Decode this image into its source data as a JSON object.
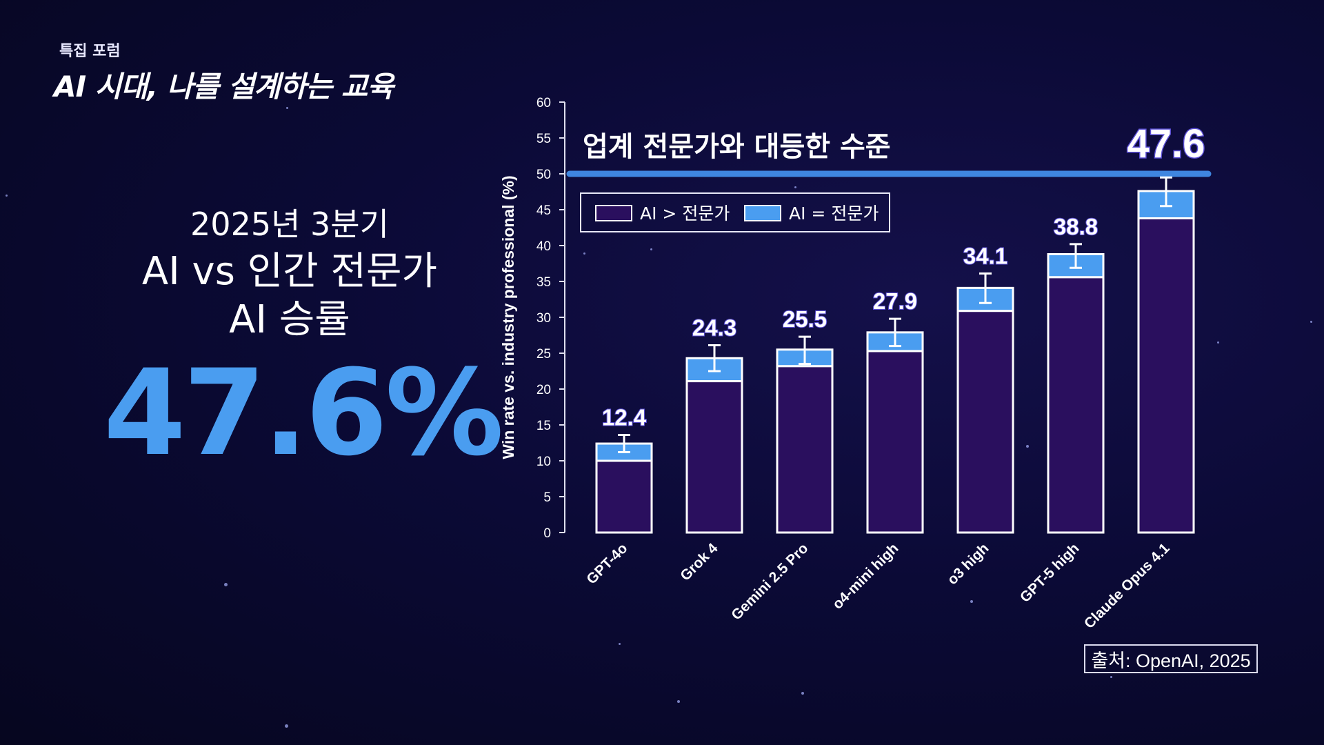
{
  "header": {
    "label": "특집 포럼",
    "title": "AI 시대, 나를 설계하는 교육"
  },
  "highlight": {
    "period": "2025년 3분기",
    "headline": "AI vs 인간 전문가",
    "subhead": "AI 승률",
    "value": "47.6%"
  },
  "source": "출처: OpenAI, 2025",
  "colors": {
    "ai_greater": "#2a0f5e",
    "ai_equal": "#4a9df0",
    "reference_line": "#3f86e0",
    "highlight": "#4a9df0"
  },
  "chart_data": {
    "type": "bar",
    "stacked": true,
    "ylabel": "Win rate vs. industry professional (%)",
    "ylim": [
      0,
      60
    ],
    "yticks": [
      0,
      5,
      10,
      15,
      20,
      25,
      30,
      35,
      40,
      45,
      50,
      55,
      60
    ],
    "categories": [
      "GPT-4o",
      "Grok 4",
      "Gemini 2.5 Pro",
      "o4-mini high",
      "o3 high",
      "GPT-5 high",
      "Claude Opus 4.1"
    ],
    "series": [
      {
        "name": "AI > 전문가",
        "values": [
          10.0,
          21.1,
          23.2,
          25.3,
          30.9,
          35.6,
          43.8
        ]
      },
      {
        "name": "AI = 전문가",
        "values": [
          2.4,
          3.2,
          2.3,
          2.6,
          3.2,
          3.2,
          3.8
        ]
      }
    ],
    "totals": [
      "12.4",
      "24.3",
      "25.5",
      "27.9",
      "34.1",
      "38.8",
      "47.6"
    ],
    "error_bars": [
      [
        11.2,
        13.6
      ],
      [
        22.5,
        26.1
      ],
      [
        23.5,
        27.3
      ],
      [
        26.0,
        29.8
      ],
      [
        32.0,
        36.1
      ],
      [
        36.9,
        40.2
      ],
      [
        45.5,
        49.5
      ]
    ],
    "reference_line": {
      "y": 50,
      "label": "업계 전문가와 대등한 수준"
    },
    "legend_position": "top-left",
    "grid": false
  }
}
